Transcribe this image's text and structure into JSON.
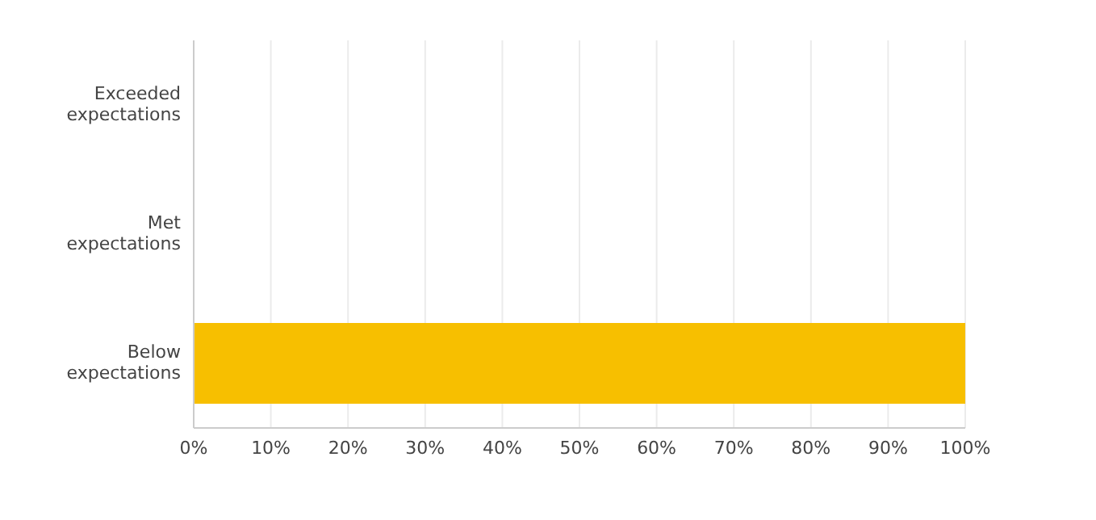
{
  "chart_data": {
    "type": "bar",
    "orientation": "horizontal",
    "categories": [
      "Exceeded expectations",
      "Met expectations",
      "Below expectations"
    ],
    "values": [
      0,
      0,
      100
    ],
    "color": "#f7bf00",
    "xlim": [
      0,
      100
    ],
    "xticks": [
      {
        "value": 0,
        "label": "0%"
      },
      {
        "value": 10,
        "label": "10%"
      },
      {
        "value": 20,
        "label": "20%"
      },
      {
        "value": 30,
        "label": "30%"
      },
      {
        "value": 40,
        "label": "40%"
      },
      {
        "value": 50,
        "label": "50%"
      },
      {
        "value": 60,
        "label": "60%"
      },
      {
        "value": 70,
        "label": "70%"
      },
      {
        "value": 80,
        "label": "80%"
      },
      {
        "value": 90,
        "label": "90%"
      },
      {
        "value": 100,
        "label": "100%"
      }
    ],
    "grid": "x",
    "legend": false
  }
}
